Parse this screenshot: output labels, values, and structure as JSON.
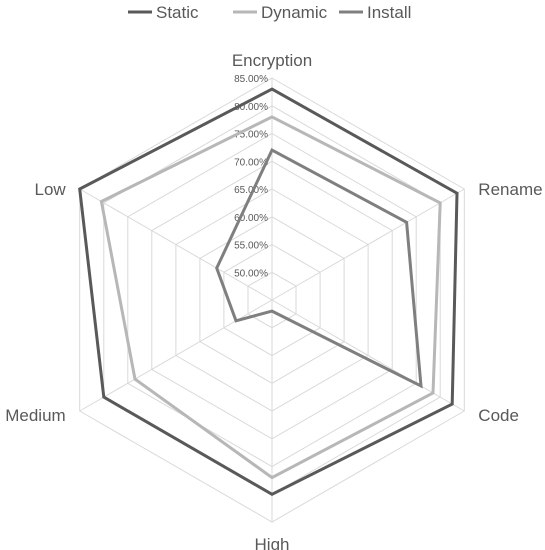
{
  "chart_data": {
    "type": "radar",
    "title": "",
    "categories": [
      "Encryption",
      "Rename",
      "Code",
      "High",
      "Medium",
      "Low"
    ],
    "series": [
      {
        "name": "Static",
        "color": "#595959",
        "values": [
          83.0,
          83.5,
          82.5,
          80.0,
          80.0,
          85.0
        ]
      },
      {
        "name": "Dynamic",
        "color": "#b7b7b7",
        "values": [
          78.0,
          80.0,
          78.5,
          77.0,
          73.5,
          80.5
        ]
      },
      {
        "name": "Install",
        "color": "#7f7f7f",
        "values": [
          72.0,
          73.0,
          76.0,
          47.0,
          52.5,
          56.5
        ]
      }
    ],
    "rlim": [
      45,
      85
    ],
    "ticks": [
      "50.00%",
      "55.00%",
      "60.00%",
      "65.00%",
      "70.00%",
      "75.00%",
      "80.00%",
      "85.00%"
    ],
    "tick_values": [
      50,
      55,
      60,
      65,
      70,
      75,
      80,
      85
    ],
    "legend_position": "top",
    "grid": true
  }
}
